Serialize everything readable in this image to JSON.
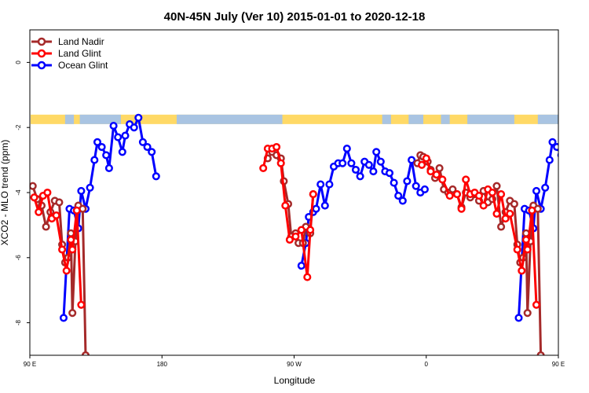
{
  "chart_data": {
    "type": "line",
    "title": "40N-45N July (Ver 10)   2015-01-01 to 2020-12-18",
    "xlabel": "Longitude",
    "ylabel": "XCO2 - MLO trend (ppm)",
    "xlim": [
      90,
      450
    ],
    "ylim": [
      -9.0,
      1.0
    ],
    "x_ticks": [
      {
        "value": 90,
        "label": "90 E"
      },
      {
        "value": 180,
        "label": "180"
      },
      {
        "value": 270,
        "label": "90 W"
      },
      {
        "value": 360,
        "label": "0"
      },
      {
        "value": 450,
        "label": "90 E"
      },
      {
        "value": 540,
        "label": "180"
      }
    ],
    "y_ticks": [
      {
        "value": 0,
        "label": "0"
      },
      {
        "value": -2,
        "label": "-2"
      },
      {
        "value": -4,
        "label": "-4"
      },
      {
        "value": -6,
        "label": "-6"
      },
      {
        "value": -8,
        "label": "-8"
      }
    ],
    "legend_position": "top-left",
    "land_strip": {
      "color_land": "#ffd966",
      "color_ocean": "#a9c4e2",
      "y_center": -1.75
    },
    "series": [
      {
        "name": "Land Nadir",
        "color": "#a52a2a",
        "points": [
          [
            92,
            -3.8
          ],
          [
            95,
            -4.2
          ],
          [
            98,
            -4.4
          ],
          [
            101,
            -5.05
          ],
          [
            104,
            -4.6
          ],
          [
            107,
            -4.25
          ],
          [
            110,
            -4.3
          ],
          [
            112,
            -5.6
          ],
          [
            114,
            -6.15
          ],
          [
            116,
            -6.0
          ],
          [
            118,
            -5.25
          ],
          [
            119,
            -7.7
          ],
          [
            121,
            -5.5
          ],
          [
            123,
            -4.4
          ],
          [
            126,
            -4.5
          ],
          [
            128,
            -9.0
          ],
          [
            252,
            -2.95
          ],
          [
            255,
            -2.75
          ],
          [
            258,
            -2.85
          ],
          [
            261,
            -2.95
          ],
          [
            263,
            -3.65
          ],
          [
            266,
            -4.35
          ],
          [
            268,
            -5.35
          ],
          [
            271,
            -5.25
          ],
          [
            273,
            -5.55
          ],
          [
            276,
            -5.55
          ],
          [
            278,
            -5.05
          ],
          [
            281,
            -5.25
          ],
          [
            283,
            -4.05
          ],
          [
            354,
            -3.1
          ],
          [
            356,
            -2.85
          ],
          [
            358,
            -2.9
          ],
          [
            361,
            -3.05
          ],
          [
            363,
            -3.3
          ],
          [
            366,
            -3.55
          ],
          [
            369,
            -3.25
          ],
          [
            372,
            -3.9
          ],
          [
            375,
            -4.0
          ],
          [
            378,
            -3.9
          ],
          [
            381,
            -4.05
          ],
          [
            384,
            -4.45
          ],
          [
            387,
            -4.0
          ],
          [
            390,
            -4.15
          ],
          [
            393,
            -4.05
          ],
          [
            396,
            -4.25
          ],
          [
            399,
            -3.95
          ],
          [
            402,
            -4.3
          ],
          [
            405,
            -4.2
          ],
          [
            408,
            -3.8
          ],
          [
            411,
            -5.05
          ],
          [
            414,
            -4.6
          ],
          [
            417,
            -4.25
          ],
          [
            420,
            -4.35
          ],
          [
            422,
            -5.6
          ],
          [
            424,
            -6.15
          ],
          [
            426,
            -6.0
          ],
          [
            428,
            -5.25
          ],
          [
            429,
            -7.7
          ],
          [
            431,
            -5.5
          ],
          [
            433,
            -4.4
          ],
          [
            436,
            -4.5
          ],
          [
            438,
            -9.0
          ]
        ]
      },
      {
        "name": "Land Glint",
        "color": "#ff0000",
        "points": [
          [
            93,
            -4.15
          ],
          [
            96,
            -4.6
          ],
          [
            99,
            -4.1
          ],
          [
            102,
            -4.0
          ],
          [
            105,
            -4.8
          ],
          [
            108,
            -4.7
          ],
          [
            112,
            -5.75
          ],
          [
            115,
            -6.4
          ],
          [
            118,
            -5.45
          ],
          [
            119,
            -5.75
          ],
          [
            122,
            -4.55
          ],
          [
            125,
            -7.45
          ],
          [
            249,
            -3.25
          ],
          [
            252,
            -2.65
          ],
          [
            255,
            -2.65
          ],
          [
            258,
            -2.6
          ],
          [
            261,
            -3.1
          ],
          [
            264,
            -4.4
          ],
          [
            267,
            -5.45
          ],
          [
            271,
            -5.35
          ],
          [
            275,
            -5.15
          ],
          [
            279,
            -6.6
          ],
          [
            281,
            -5.15
          ],
          [
            283,
            -4.05
          ],
          [
            357,
            -3.15
          ],
          [
            360,
            -2.95
          ],
          [
            363,
            -3.35
          ],
          [
            367,
            -3.45
          ],
          [
            371,
            -3.6
          ],
          [
            376,
            -4.1
          ],
          [
            381,
            -4.05
          ],
          [
            384,
            -4.5
          ],
          [
            387,
            -3.6
          ],
          [
            390,
            -4.05
          ],
          [
            393,
            -4.0
          ],
          [
            396,
            -4.1
          ],
          [
            399,
            -4.4
          ],
          [
            402,
            -3.9
          ],
          [
            405,
            -4.0
          ],
          [
            408,
            -4.65
          ],
          [
            411,
            -4.05
          ],
          [
            414,
            -4.8
          ],
          [
            417,
            -4.65
          ],
          [
            422,
            -5.75
          ],
          [
            425,
            -6.4
          ],
          [
            428,
            -5.45
          ],
          [
            429,
            -5.75
          ],
          [
            432,
            -4.55
          ],
          [
            435,
            -7.45
          ]
        ]
      },
      {
        "name": "Ocean Glint",
        "color": "#0000ff",
        "points": [
          [
            113,
            -7.85
          ],
          [
            117,
            -4.5
          ],
          [
            120,
            -4.55
          ],
          [
            123,
            -5.1
          ],
          [
            125,
            -3.95
          ],
          [
            128,
            -4.5
          ],
          [
            131,
            -3.85
          ],
          [
            134,
            -3.0
          ],
          [
            136,
            -2.45
          ],
          [
            139,
            -2.6
          ],
          [
            142,
            -2.85
          ],
          [
            144,
            -3.25
          ],
          [
            147,
            -1.95
          ],
          [
            150,
            -2.3
          ],
          [
            153,
            -2.75
          ],
          [
            155,
            -2.25
          ],
          [
            158,
            -1.9
          ],
          [
            161,
            -2.0
          ],
          [
            164,
            -1.7
          ],
          [
            167,
            -2.45
          ],
          [
            170,
            -2.6
          ],
          [
            173,
            -2.75
          ],
          [
            176,
            -3.5
          ],
          [
            275,
            -6.25
          ],
          [
            278,
            -5.55
          ],
          [
            280,
            -4.75
          ],
          [
            283,
            -4.6
          ],
          [
            285,
            -4.5
          ],
          [
            288,
            -3.75
          ],
          [
            291,
            -4.4
          ],
          [
            294,
            -3.75
          ],
          [
            297,
            -3.2
          ],
          [
            300,
            -3.1
          ],
          [
            303,
            -3.1
          ],
          [
            306,
            -2.65
          ],
          [
            309,
            -3.1
          ],
          [
            312,
            -3.3
          ],
          [
            315,
            -3.5
          ],
          [
            318,
            -3.05
          ],
          [
            321,
            -3.15
          ],
          [
            324,
            -3.35
          ],
          [
            326,
            -2.75
          ],
          [
            329,
            -3.05
          ],
          [
            332,
            -3.35
          ],
          [
            335,
            -3.4
          ],
          [
            338,
            -3.7
          ],
          [
            341,
            -4.1
          ],
          [
            344,
            -4.25
          ],
          [
            347,
            -3.65
          ],
          [
            350,
            -3.0
          ],
          [
            353,
            -3.8
          ],
          [
            356,
            -4.0
          ],
          [
            359,
            -3.9
          ],
          [
            423,
            -7.85
          ],
          [
            427,
            -4.5
          ],
          [
            430,
            -4.55
          ],
          [
            433,
            -5.1
          ],
          [
            435,
            -3.95
          ],
          [
            438,
            -4.5
          ],
          [
            441,
            -3.85
          ],
          [
            444,
            -3.0
          ],
          [
            446,
            -2.45
          ],
          [
            449,
            -2.6
          ],
          [
            452,
            -2.85
          ]
        ]
      }
    ]
  }
}
